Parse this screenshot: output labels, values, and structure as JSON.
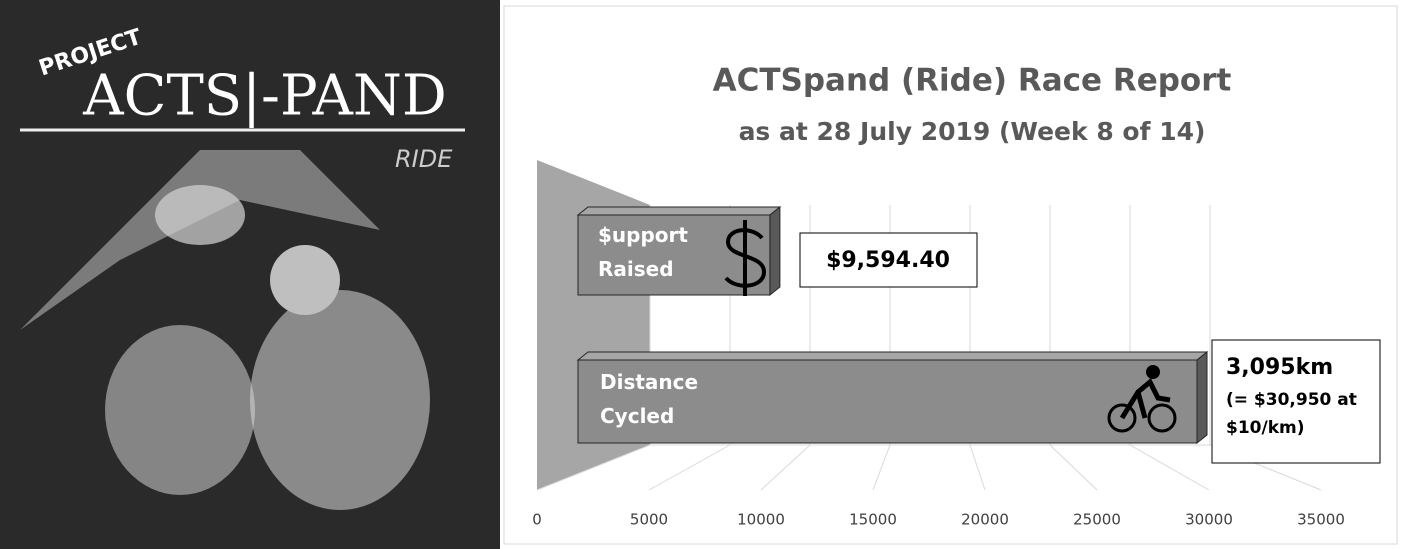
{
  "artwork": {
    "kicker": "PROJECT",
    "name": "ACTS|-PAND",
    "tag": "RIDE"
  },
  "chart_data": {
    "type": "bar3d",
    "orientation": "horizontal",
    "title": "ACTSpand (Ride) Race Report",
    "subtitle": "as at 28 July 2019 (Week 8 of 14)",
    "categories": [
      "$upport Raised",
      "Distance Cycled"
    ],
    "values": [
      9594.4,
      30950
    ],
    "value_labels": [
      "$9,594.40",
      "(= $30,950 at $10/km)"
    ],
    "annotations": [
      "3,095km"
    ],
    "color": "#8c8c8c",
    "xlim": [
      0,
      35000
    ],
    "xticks": [
      0,
      5000,
      10000,
      15000,
      20000,
      25000,
      30000,
      35000
    ],
    "grid": true
  }
}
